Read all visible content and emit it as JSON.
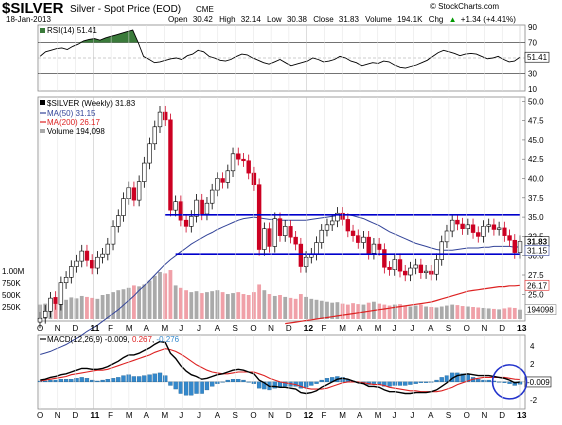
{
  "header": {
    "symbol": "$SILVER",
    "name": "Silver - Spot Price (EOD)",
    "exchange": "CME",
    "date": "18-Jan-2013",
    "open_label": "Open",
    "open": "30.42",
    "high_label": "High",
    "high": "32.14",
    "low_label": "Low",
    "low": "30.38",
    "close_label": "Close",
    "close": "31.83",
    "volume_label": "Volume",
    "volume": "194.1K",
    "chg_label": "Chg",
    "chg": "+1.34 (+4.41%)",
    "chg_arrow": "▲",
    "brand": "© StockCharts.com"
  },
  "colors": {
    "up_candle": "#ffffff",
    "down_candle": "#cc0022",
    "ma50": "#334499",
    "ma200": "#dd2222",
    "volume_up": "#aaaaaa",
    "volume_down": "#f0a0a8",
    "trendline": "#0000cc",
    "rsi_fill": "#3a7a3a",
    "macd": "#000000",
    "signal": "#dd2222",
    "histogram": "#3388cc",
    "circle": "#2233cc"
  },
  "x_axis": {
    "months": [
      {
        "label": "O",
        "bold": false
      },
      {
        "label": "N",
        "bold": false
      },
      {
        "label": "D",
        "bold": false
      },
      {
        "label": "11",
        "bold": true
      },
      {
        "label": "F",
        "bold": false
      },
      {
        "label": "M",
        "bold": false
      },
      {
        "label": "A",
        "bold": false
      },
      {
        "label": "M",
        "bold": false
      },
      {
        "label": "J",
        "bold": false
      },
      {
        "label": "J",
        "bold": false
      },
      {
        "label": "A",
        "bold": false
      },
      {
        "label": "S",
        "bold": false
      },
      {
        "label": "O",
        "bold": false
      },
      {
        "label": "N",
        "bold": false
      },
      {
        "label": "D",
        "bold": false
      },
      {
        "label": "12",
        "bold": true
      },
      {
        "label": "F",
        "bold": false
      },
      {
        "label": "M",
        "bold": false
      },
      {
        "label": "A",
        "bold": false
      },
      {
        "label": "M",
        "bold": false
      },
      {
        "label": "J",
        "bold": false
      },
      {
        "label": "J",
        "bold": false
      },
      {
        "label": "A",
        "bold": false
      },
      {
        "label": "S",
        "bold": false
      },
      {
        "label": "O",
        "bold": false
      },
      {
        "label": "N",
        "bold": false
      },
      {
        "label": "D",
        "bold": false
      },
      {
        "label": "13",
        "bold": true
      }
    ]
  },
  "chart_data": [
    {
      "type": "line",
      "panel": "rsi",
      "legend": "RSI(14) 51.41",
      "ylim": [
        10,
        90
      ],
      "y_ticks": [
        "90",
        "70",
        "50",
        "30",
        "10"
      ],
      "last_value_label": "51.41",
      "series": [
        {
          "name": "RSI(14)",
          "values": [
            52,
            58,
            60,
            62,
            63,
            61,
            65,
            68,
            72,
            74,
            75,
            73,
            76,
            78,
            80,
            82,
            84,
            86,
            70,
            52,
            48,
            44,
            45,
            47,
            49,
            50,
            48,
            53,
            55,
            60,
            58,
            52,
            50,
            47,
            46,
            48,
            52,
            55,
            54,
            50,
            47,
            44,
            42,
            45,
            48,
            44,
            40,
            42,
            44,
            46,
            50,
            48,
            45,
            46,
            48,
            52,
            50,
            46,
            44,
            40,
            42,
            44,
            43,
            46,
            45,
            41,
            38,
            37,
            39,
            41,
            44,
            47,
            52,
            57,
            60,
            58,
            56,
            53,
            55,
            56,
            55,
            52,
            49,
            50,
            52,
            48,
            45,
            46,
            51
          ]
        }
      ]
    },
    {
      "type": "candlestick",
      "panel": "price",
      "legend": {
        "title": "$SILVER (Weekly) 31.83",
        "ma50": "MA(50) 31.15",
        "ma200": "MA(200) 26.17",
        "volume": "Volume 194,098"
      },
      "ylim": [
        21.8,
        50.3
      ],
      "y_ticks": [
        "50.0",
        "47.5",
        "45.0",
        "42.5",
        "40.0",
        "37.5",
        "35.0",
        "32.5",
        "30.0",
        "27.5",
        "25.0"
      ],
      "volume_ticks": [
        "1.00M",
        "750K",
        "500K",
        "250K"
      ],
      "last_labels": {
        "close": "31.83",
        "ma50": "31.15",
        "ma200": "26.17",
        "volume": "194098"
      },
      "close": [
        21.9,
        22.8,
        24.5,
        23.8,
        26.5,
        27.2,
        28.6,
        29.3,
        30.6,
        29.4,
        28.4,
        29.8,
        30.2,
        31.5,
        33.8,
        35.2,
        37.4,
        38.8,
        37.2,
        39.6,
        42.0,
        44.5,
        46.7,
        48.6,
        47.6,
        35.9,
        37.0,
        34.6,
        33.8,
        35.1,
        37.2,
        35.4,
        36.8,
        38.5,
        40.0,
        39.5,
        41.0,
        43.2,
        42.5,
        42.3,
        40.7,
        39.2,
        30.8,
        33.5,
        31.2,
        34.8,
        32.6,
        33.8,
        32.4,
        31.5,
        28.6,
        29.8,
        30.2,
        31.7,
        33.3,
        34.0,
        34.5,
        35.5,
        34.7,
        33.2,
        32.6,
        31.7,
        32.4,
        30.3,
        31.5,
        30.8,
        28.5,
        28.2,
        29.5,
        28.0,
        27.5,
        28.4,
        28.8,
        27.8,
        28.0,
        27.6,
        29.5,
        31.8,
        33.2,
        34.6,
        34.1,
        33.5,
        34.0,
        33.0,
        32.5,
        33.8,
        34.0,
        33.4,
        33.6,
        32.6,
        32.0,
        30.4,
        31.83
      ],
      "open": [
        21.4,
        22.0,
        22.8,
        24.6,
        23.7,
        26.5,
        27.2,
        28.6,
        29.3,
        30.6,
        29.4,
        28.4,
        29.8,
        30.2,
        31.5,
        33.8,
        35.2,
        37.4,
        38.8,
        37.2,
        39.6,
        42.0,
        44.5,
        46.7,
        48.6,
        47.6,
        35.9,
        37.0,
        34.6,
        33.8,
        35.1,
        37.2,
        35.4,
        36.8,
        38.5,
        40.0,
        39.5,
        41.0,
        43.2,
        42.5,
        42.3,
        40.7,
        39.2,
        30.8,
        33.5,
        31.2,
        34.8,
        32.6,
        33.8,
        32.4,
        31.5,
        28.6,
        29.8,
        30.2,
        31.7,
        33.3,
        34.0,
        34.5,
        35.5,
        34.7,
        33.2,
        32.6,
        31.7,
        32.4,
        30.3,
        31.5,
        30.8,
        28.5,
        28.2,
        29.5,
        28.0,
        27.5,
        28.4,
        28.8,
        27.8,
        28.0,
        27.6,
        29.5,
        31.8,
        33.2,
        34.6,
        34.1,
        33.5,
        34.0,
        33.0,
        32.5,
        33.8,
        34.0,
        33.4,
        33.6,
        32.6,
        32.0,
        30.42
      ],
      "volume": [
        300,
        320,
        380,
        360,
        420,
        400,
        450,
        430,
        480,
        460,
        440,
        420,
        500,
        520,
        560,
        600,
        620,
        650,
        700,
        680,
        720,
        800,
        900,
        980,
        950,
        1020,
        700,
        650,
        600,
        560,
        580,
        540,
        560,
        580,
        600,
        560,
        520,
        540,
        560,
        520,
        500,
        560,
        720,
        600,
        520,
        480,
        500,
        460,
        440,
        420,
        520,
        460,
        420,
        400,
        380,
        360,
        340,
        350,
        320,
        300,
        330,
        310,
        300,
        340,
        360,
        320,
        300,
        280,
        300,
        310,
        280,
        260,
        280,
        300,
        260,
        250,
        240,
        260,
        280,
        300,
        290,
        270,
        260,
        250,
        240,
        230,
        220,
        210,
        200,
        220,
        240,
        230,
        194
      ],
      "ma50": [
        17.2,
        17.4,
        17.6,
        17.9,
        18.2,
        18.5,
        18.9,
        19.3,
        19.7,
        20.2,
        20.6,
        21.0,
        21.5,
        22.0,
        22.5,
        23.0,
        23.6,
        24.2,
        24.8,
        25.5,
        26.1,
        26.8,
        27.5,
        28.2,
        28.9,
        29.5,
        30.0,
        30.5,
        31.0,
        31.5,
        31.9,
        32.3,
        32.7,
        33.0,
        33.4,
        33.7,
        34.0,
        34.3,
        34.6,
        34.8,
        34.9,
        35.0,
        34.9,
        34.8,
        34.7,
        34.7,
        34.6,
        34.6,
        34.6,
        34.6,
        34.6,
        34.6,
        34.7,
        34.8,
        34.9,
        35.0,
        35.1,
        35.2,
        35.3,
        35.3,
        35.2,
        35.0,
        34.8,
        34.5,
        34.2,
        33.9,
        33.5,
        33.1,
        32.8,
        32.5,
        32.2,
        31.9,
        31.6,
        31.4,
        31.2,
        31.0,
        30.8,
        30.7,
        30.7,
        30.7,
        30.8,
        30.9,
        31.0,
        31.0,
        31.0,
        31.1,
        31.1,
        31.2,
        31.2,
        31.2,
        31.2,
        31.1,
        31.15
      ],
      "ma200": [
        null,
        null,
        null,
        null,
        null,
        null,
        null,
        null,
        null,
        null,
        null,
        null,
        null,
        null,
        null,
        null,
        null,
        null,
        null,
        null,
        null,
        null,
        null,
        null,
        null,
        null,
        null,
        null,
        null,
        null,
        null,
        null,
        null,
        null,
        null,
        null,
        null,
        null,
        null,
        null,
        null,
        null,
        null,
        null,
        null,
        null,
        null,
        21.2,
        21.3,
        21.4,
        21.5,
        21.6,
        21.7,
        21.8,
        21.9,
        22.0,
        22.1,
        22.2,
        22.3,
        22.4,
        22.5,
        22.6,
        22.7,
        22.8,
        22.9,
        23.0,
        23.1,
        23.2,
        23.3,
        23.4,
        23.5,
        23.6,
        23.7,
        23.8,
        23.9,
        24.0,
        24.2,
        24.4,
        24.6,
        24.8,
        25.0,
        25.2,
        25.4,
        25.5,
        25.6,
        25.7,
        25.8,
        25.9,
        26.0,
        26.0,
        26.1,
        26.1,
        26.17
      ],
      "trendlines": [
        {
          "x": [
            24,
            92
          ],
          "y": [
            35.3,
            35.3
          ]
        },
        {
          "x": [
            26,
            92
          ],
          "y": [
            30.2,
            30.2
          ]
        }
      ]
    },
    {
      "type": "line",
      "panel": "macd",
      "legend": {
        "macd": "MACD(12,26,9) -0.009",
        "signal": "0.267",
        "histogram": "-0.276"
      },
      "ylim": [
        -2.8,
        5.0
      ],
      "y_ticks": [
        "4",
        "2",
        "0",
        "-2"
      ],
      "last_value_label": "-0.009",
      "macd": [
        0.2,
        0.3,
        0.5,
        0.6,
        0.8,
        0.9,
        1.1,
        1.3,
        1.5,
        1.5,
        1.4,
        1.4,
        1.5,
        1.7,
        2.0,
        2.3,
        2.7,
        3.0,
        3.0,
        3.2,
        3.5,
        3.8,
        4.2,
        4.5,
        4.4,
        3.2,
        2.6,
        1.8,
        1.2,
        0.8,
        0.6,
        0.3,
        0.4,
        0.6,
        0.8,
        0.9,
        1.1,
        1.3,
        1.4,
        1.3,
        1.1,
        0.9,
        0.2,
        -0.1,
        -0.5,
        -0.5,
        -0.6,
        -0.6,
        -0.7,
        -0.8,
        -1.2,
        -1.3,
        -1.2,
        -1.0,
        -0.6,
        -0.3,
        0.0,
        0.3,
        0.4,
        0.3,
        0.1,
        -0.1,
        -0.2,
        -0.5,
        -0.5,
        -0.6,
        -0.9,
        -1.1,
        -1.1,
        -1.2,
        -1.3,
        -1.3,
        -1.2,
        -1.2,
        -1.2,
        -1.1,
        -0.9,
        -0.5,
        -0.1,
        0.4,
        0.7,
        0.8,
        0.9,
        0.8,
        0.7,
        0.7,
        0.7,
        0.6,
        0.5,
        0.4,
        0.2,
        -0.1,
        -0.009
      ],
      "signal": [
        0.1,
        0.2,
        0.3,
        0.4,
        0.5,
        0.6,
        0.8,
        0.9,
        1.0,
        1.1,
        1.2,
        1.3,
        1.3,
        1.4,
        1.6,
        1.8,
        2.0,
        2.2,
        2.4,
        2.6,
        2.8,
        3.0,
        3.3,
        3.5,
        3.7,
        3.6,
        3.4,
        3.1,
        2.7,
        2.3,
        1.9,
        1.6,
        1.3,
        1.1,
        1.0,
        0.9,
        0.9,
        1.0,
        1.1,
        1.1,
        1.1,
        1.1,
        0.9,
        0.7,
        0.4,
        0.2,
        0.0,
        -0.1,
        -0.2,
        -0.3,
        -0.5,
        -0.7,
        -0.8,
        -0.8,
        -0.8,
        -0.7,
        -0.5,
        -0.3,
        -0.1,
        0.0,
        0.0,
        0.0,
        -0.1,
        -0.2,
        -0.3,
        -0.3,
        -0.4,
        -0.6,
        -0.7,
        -0.8,
        -0.9,
        -1.0,
        -1.0,
        -1.1,
        -1.1,
        -1.1,
        -1.1,
        -1.0,
        -0.8,
        -0.6,
        -0.3,
        -0.1,
        0.1,
        0.3,
        0.4,
        0.5,
        0.5,
        0.5,
        0.5,
        0.5,
        0.4,
        0.3,
        0.267
      ]
    }
  ]
}
